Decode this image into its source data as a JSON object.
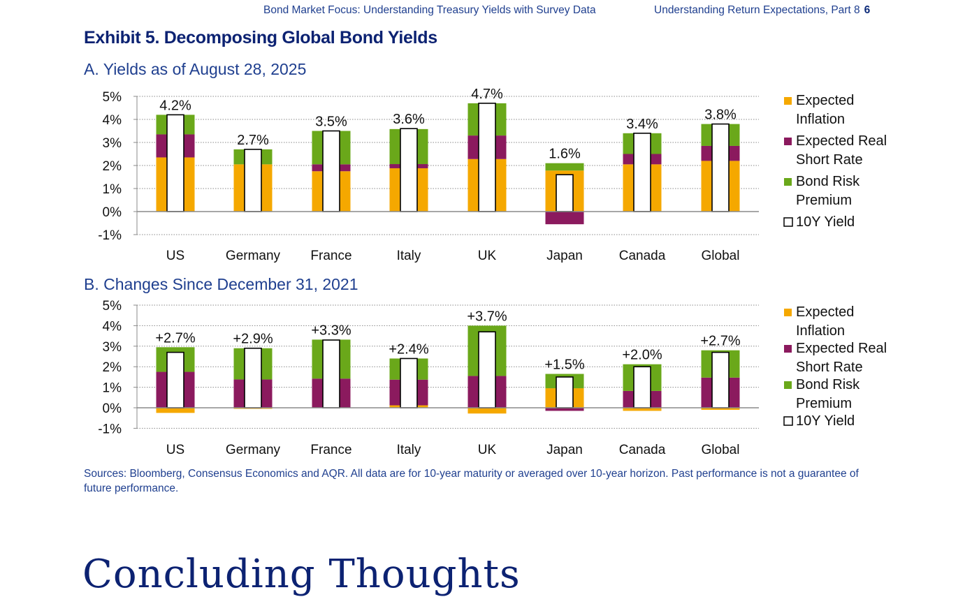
{
  "header": {
    "left": "Bond Market Focus: Understanding Treasury Yields with Survey Data",
    "right": "Understanding Return Expectations, Part 8",
    "page": "6"
  },
  "exhibit_title": "Exhibit 5. Decomposing Global Bond Yields",
  "sources": "Sources: Bloomberg, Consensus Economics and AQR. All data are for 10-year maturity or averaged over 10-year horizon. Past performance is not a guarantee of future performance.",
  "next_section_title": "Concluding Thoughts",
  "colors": {
    "inflation": "#f5a800",
    "real_short_rate": "#8b1a5e",
    "risk_premium": "#6aa81a",
    "yield_box": "#ffffff",
    "title": "#0c2272",
    "subtitle": "#1f3f8f"
  },
  "chart_data": [
    {
      "type": "bar",
      "title": "A. Yields as of August 28, 2025",
      "stacked": true,
      "categories": [
        "US",
        "Germany",
        "France",
        "Italy",
        "UK",
        "Japan",
        "Canada",
        "Global"
      ],
      "ylim": [
        -1,
        5
      ],
      "yticks": [
        "5%",
        "4%",
        "3%",
        "2%",
        "1%",
        "0%",
        "-1%"
      ],
      "ytick_values": [
        5,
        4,
        3,
        2,
        1,
        0,
        -1
      ],
      "grid": true,
      "legend_position": "right",
      "series": [
        {
          "name": "Expected Inflation",
          "values": [
            2.35,
            2.05,
            1.75,
            1.88,
            2.28,
            1.78,
            2.05,
            2.2
          ]
        },
        {
          "name": "Expected Real Short Rate",
          "values": [
            1.0,
            0.0,
            0.3,
            0.18,
            1.02,
            -0.55,
            0.45,
            0.65
          ]
        },
        {
          "name": "Bond Risk Premium",
          "values": [
            0.85,
            0.65,
            1.45,
            1.52,
            1.4,
            0.32,
            0.9,
            0.95
          ]
        }
      ],
      "yield_values": [
        4.2,
        2.7,
        3.5,
        3.6,
        4.7,
        1.6,
        3.4,
        3.8
      ],
      "data_labels": [
        "4.2%",
        "2.7%",
        "3.5%",
        "3.6%",
        "4.7%",
        "1.6%",
        "3.4%",
        "3.8%"
      ],
      "legend": [
        "Expected Inflation",
        "Expected Real Short Rate",
        "Bond Risk Premium",
        "10Y Yield"
      ]
    },
    {
      "type": "bar",
      "title": "B. Changes Since December 31, 2021",
      "stacked": true,
      "categories": [
        "US",
        "Germany",
        "France",
        "Italy",
        "UK",
        "Japan",
        "Canada",
        "Global"
      ],
      "ylim": [
        -1,
        5
      ],
      "yticks": [
        "5%",
        "4%",
        "3%",
        "2%",
        "1%",
        "0%",
        "-1%"
      ],
      "ytick_values": [
        5,
        4,
        3,
        2,
        1,
        0,
        -1
      ],
      "grid": true,
      "legend_position": "right",
      "series": [
        {
          "name": "Expected Inflation",
          "values": [
            -0.25,
            -0.05,
            0.0,
            0.12,
            -0.28,
            0.95,
            -0.15,
            -0.1
          ]
        },
        {
          "name": "Expected Real Short Rate",
          "values": [
            1.75,
            1.38,
            1.42,
            1.25,
            1.55,
            -0.15,
            0.82,
            1.47
          ]
        },
        {
          "name": "Bond Risk Premium",
          "values": [
            1.2,
            1.52,
            1.9,
            1.03,
            2.45,
            0.7,
            1.3,
            1.33
          ]
        }
      ],
      "yield_values": [
        2.7,
        2.9,
        3.3,
        2.4,
        3.7,
        1.5,
        2.0,
        2.7
      ],
      "data_labels": [
        "+2.7%",
        "+2.9%",
        "+3.3%",
        "+2.4%",
        "+3.7%",
        "+1.5%",
        "+2.0%",
        "+2.7%"
      ],
      "legend": [
        "Expected Inflation",
        "Expected Real Short Rate",
        "Bond Risk Premium",
        "10Y Yield"
      ]
    }
  ]
}
